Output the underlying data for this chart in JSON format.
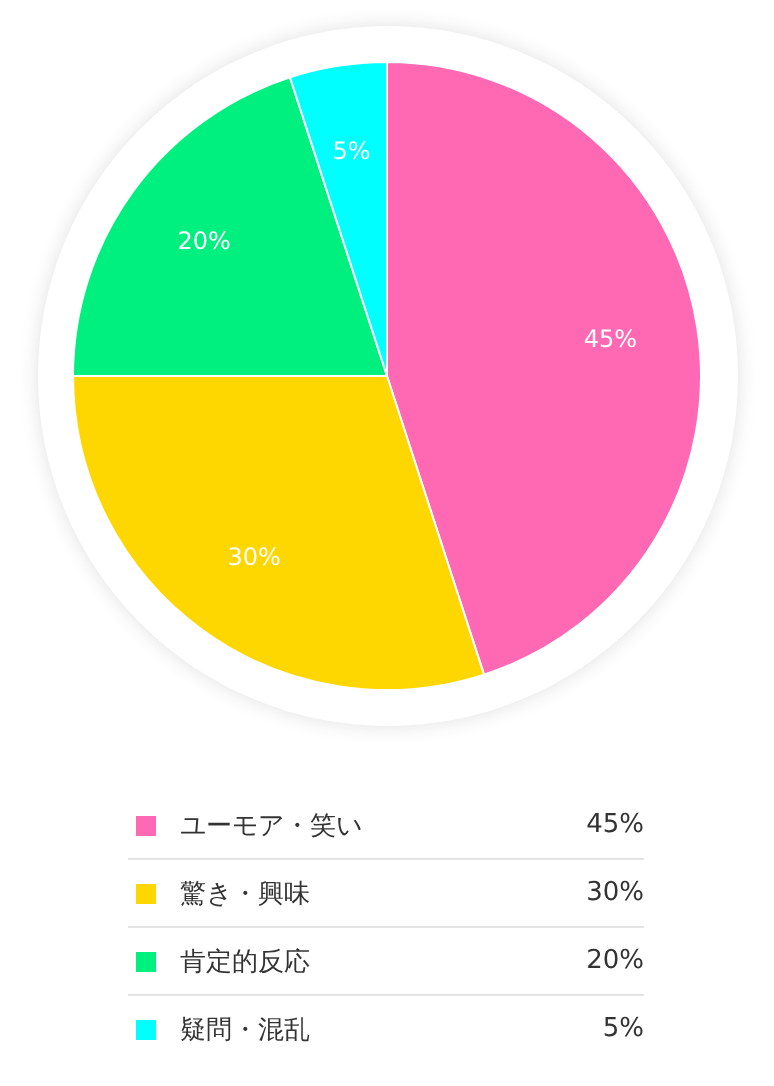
{
  "chart_data": {
    "type": "pie",
    "categories": [
      "ユーモア・笑い",
      "驚き・興味",
      "肯定的反応",
      "疑問・混乱"
    ],
    "values": [
      45,
      30,
      20,
      5
    ],
    "colors": [
      "#ff69b4",
      "#ffd700",
      "#00f080",
      "#00ffff"
    ],
    "value_labels": [
      "45%",
      "30%",
      "20%",
      "5%"
    ],
    "legend": "bottom"
  }
}
